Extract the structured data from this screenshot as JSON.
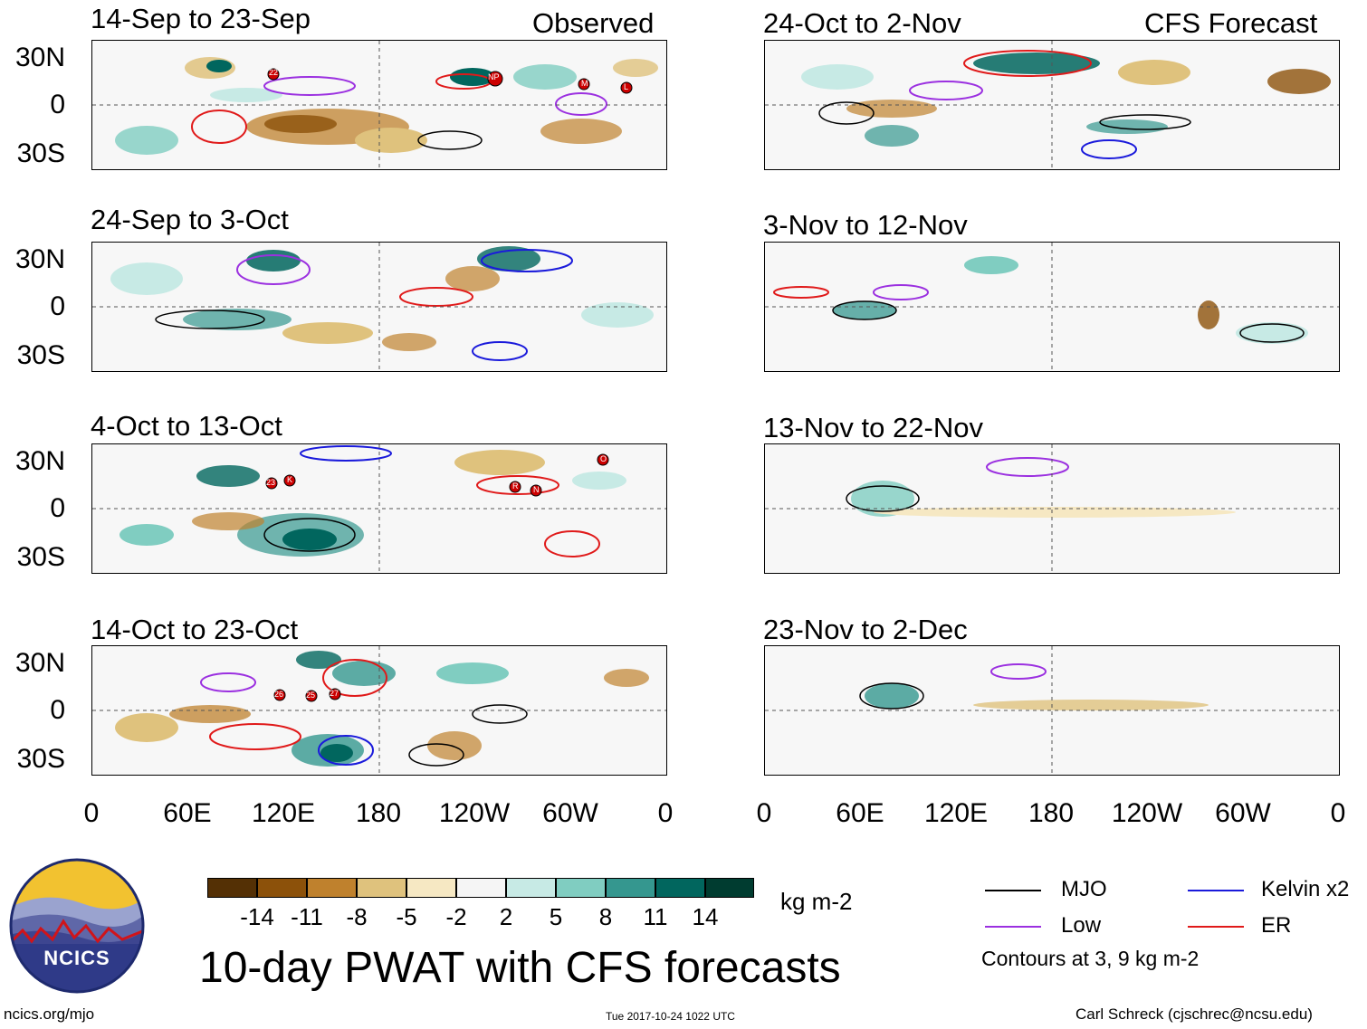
{
  "panels": [
    {
      "title": "14-Sep to 23-Sep",
      "tag": "Observed",
      "storms": [
        "22",
        "NP",
        "M",
        "L"
      ]
    },
    {
      "title": "24-Sep to 3-Oct",
      "tag": ""
    },
    {
      "title": "4-Oct to 13-Oct",
      "tag": "",
      "storms": [
        "23",
        "K",
        "R",
        "N",
        "O"
      ]
    },
    {
      "title": "14-Oct to 23-Oct",
      "tag": "",
      "storms": [
        "26",
        "25",
        "27"
      ]
    },
    {
      "title": "24-Oct to 2-Nov",
      "tag": "CFS Forecast"
    },
    {
      "title": "3-Nov to 12-Nov",
      "tag": ""
    },
    {
      "title": "13-Nov to 22-Nov",
      "tag": ""
    },
    {
      "title": "23-Nov to 2-Dec",
      "tag": ""
    }
  ],
  "lat_ticks": [
    "30N",
    "0",
    "30S"
  ],
  "lon_ticks": [
    "0",
    "60E",
    "120E",
    "180",
    "120W",
    "60W",
    "0"
  ],
  "colorbar": {
    "colors": [
      "#543005",
      "#8c510a",
      "#bf812d",
      "#dfc27d",
      "#f6e8c3",
      "#f5f5f5",
      "#c7eae5",
      "#80cdc1",
      "#35978f",
      "#01665e",
      "#003c30"
    ],
    "labels": [
      "-14",
      "-11",
      "-8",
      "-5",
      "-2",
      "2",
      "5",
      "8",
      "11",
      "14"
    ],
    "units": "kg m-2"
  },
  "legend": {
    "items": [
      {
        "label": "MJO",
        "color": "#000000"
      },
      {
        "label": "Kelvin x2",
        "color": "#1a1adb"
      },
      {
        "label": "Low",
        "color": "#9b30e0"
      },
      {
        "label": "ER",
        "color": "#e01a1a"
      }
    ],
    "contours_note": "Contours at 3, 9 kg m-2"
  },
  "logo_text": "NCICS",
  "main_title": "10-day PWAT with CFS forecasts",
  "footer": {
    "left": "ncics.org/mjo",
    "center": "Tue 2017-10-24 1022 UTC",
    "right": "Carl Schreck (cjschrec@ncsu.edu)"
  }
}
